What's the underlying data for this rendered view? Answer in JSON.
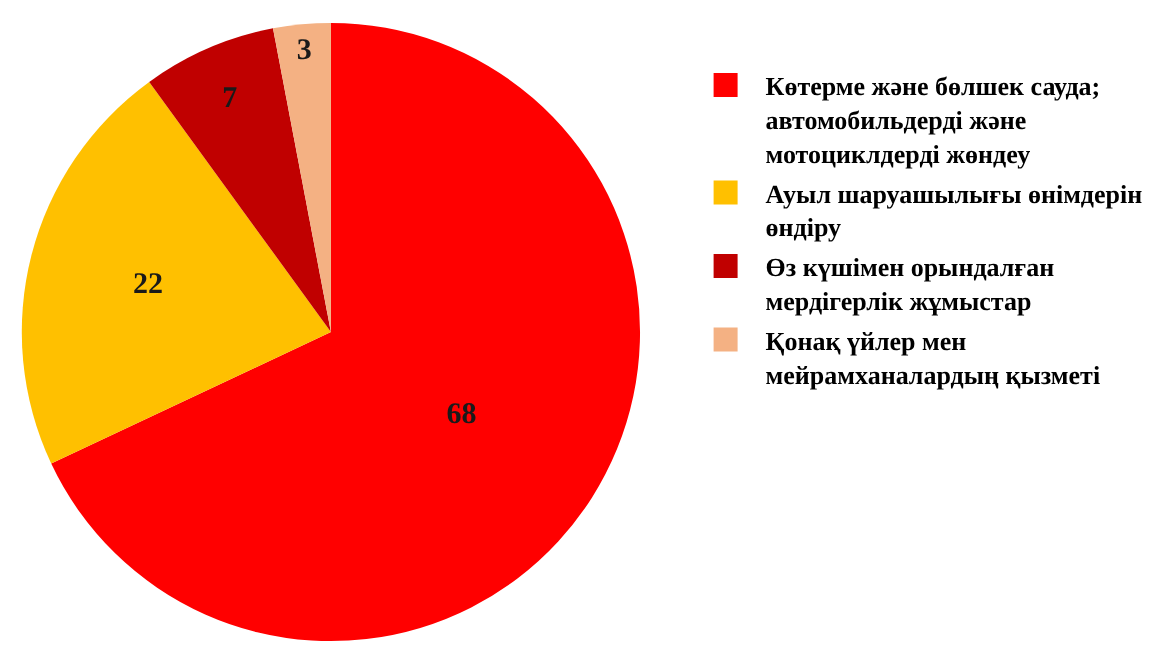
{
  "chart_data": {
    "type": "pie",
    "categories": [
      "Көтерме және бөлшек сауда; автомобильдерді және мотоциклдерді жөндеу",
      "Ауыл шаруашылығы өнімдерін өндіру",
      "Өз күшімен орындалған мердігерлік жұмыстар",
      "Қонақ үйлер мен мейрамханалардың қызметі"
    ],
    "values": [
      68,
      22,
      7,
      3
    ],
    "colors": [
      "#ff0000",
      "#ffc000",
      "#c00000",
      "#f4b183"
    ],
    "data_labels": true,
    "legend": "right"
  }
}
